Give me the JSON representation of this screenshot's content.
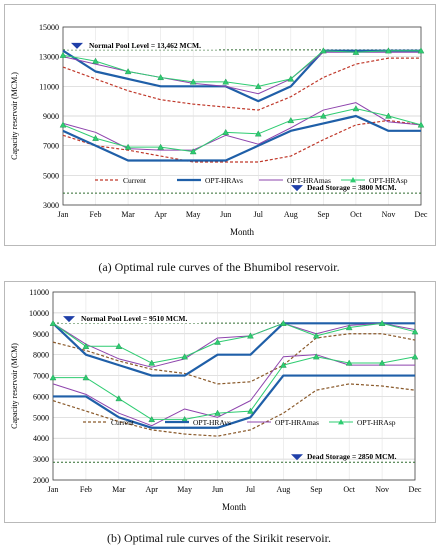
{
  "chart_data": [
    {
      "type": "line",
      "xlabel": "Month",
      "ylabel": "Capacity reservoir (MCM.)",
      "categories": [
        "Jan",
        "Feb",
        "Mar",
        "Apr",
        "May",
        "Jun",
        "Jul",
        "Aug",
        "Sep",
        "Oct",
        "Nov",
        "Dec"
      ],
      "yticks": [
        3000,
        5000,
        7000,
        9000,
        11000,
        13000,
        15000
      ],
      "ylim": [
        3000,
        15000
      ],
      "grid": true,
      "normal_pool": {
        "label": "Normal Pool Level = 13,462  MCM.",
        "value": 13462
      },
      "dead_storage": {
        "label": "Dead Storage = 3800 MCM.",
        "value": 3800
      },
      "legend": [
        {
          "name": "Current",
          "color": "#c0392b",
          "dash": "3,2",
          "marker": "none",
          "width": 1.2
        },
        {
          "name": "OPT-HRAvs",
          "color": "#1f5fa8",
          "dash": "",
          "marker": "none",
          "width": 2.2
        },
        {
          "name": "OPT-HRAmas",
          "color": "#8e44ad",
          "dash": "",
          "marker": "none",
          "width": 1
        },
        {
          "name": "OPT-HRAsp",
          "color": "#2ecc71",
          "dash": "",
          "marker": "triangle",
          "width": 1
        }
      ],
      "series": [
        {
          "name": "Current",
          "values": [
            12300,
            11500,
            10700,
            10100,
            9800,
            9600,
            9400,
            10300,
            11600,
            12500,
            12900,
            12900
          ],
          "color": "#c0392b",
          "dash": "3,2",
          "marker": "none",
          "width": 1.2
        },
        {
          "name": "Current",
          "values": [
            7700,
            7000,
            6700,
            6300,
            5900,
            5900,
            5900,
            6300,
            7400,
            8400,
            8700,
            8400
          ],
          "color": "#c0392b",
          "dash": "3,2",
          "marker": "none",
          "width": 1.2
        },
        {
          "name": "OPT-HRAvs",
          "values": [
            13400,
            12000,
            11500,
            11000,
            11000,
            11000,
            10000,
            11000,
            13400,
            13400,
            13400,
            13400
          ],
          "color": "#1f5fa8",
          "dash": "",
          "marker": "none",
          "width": 2.2
        },
        {
          "name": "OPT-HRAvs",
          "values": [
            8000,
            7000,
            6000,
            6000,
            6000,
            6000,
            7000,
            8000,
            8500,
            9000,
            8000,
            8000
          ],
          "color": "#1f5fa8",
          "dash": "",
          "marker": "none",
          "width": 2.2
        },
        {
          "name": "OPT-HRAmas",
          "values": [
            13000,
            12500,
            12000,
            11600,
            11200,
            11000,
            10500,
            11500,
            13300,
            13300,
            13300,
            13300
          ],
          "color": "#8e44ad",
          "dash": "",
          "marker": "none",
          "width": 1
        },
        {
          "name": "OPT-HRAmas",
          "values": [
            8500,
            7900,
            6800,
            6700,
            6700,
            7700,
            7100,
            8200,
            9400,
            9900,
            8600,
            8400
          ],
          "color": "#8e44ad",
          "dash": "",
          "marker": "none",
          "width": 1
        },
        {
          "name": "OPT-HRAsp",
          "values": [
            13100,
            12700,
            12000,
            11600,
            11300,
            11300,
            11000,
            11500,
            13400,
            13300,
            13400,
            13400
          ],
          "color": "#2ecc71",
          "dash": "",
          "marker": "triangle",
          "width": 1
        },
        {
          "name": "OPT-HRAsp",
          "values": [
            8400,
            7500,
            6900,
            6900,
            6600,
            7900,
            7800,
            8700,
            9000,
            9500,
            9000,
            8400
          ],
          "color": "#2ecc71",
          "dash": "",
          "marker": "triangle",
          "width": 1
        }
      ]
    },
    {
      "type": "line",
      "xlabel": "Month",
      "ylabel": "Capacity reservoir (MCM)",
      "categories": [
        "Jan",
        "Feb",
        "Mar",
        "Apr",
        "May",
        "Jun",
        "Jul",
        "Aug",
        "Sep",
        "Oct",
        "Nov",
        "Dec"
      ],
      "yticks": [
        2000,
        3000,
        4000,
        5000,
        6000,
        7000,
        8000,
        9000,
        10000,
        11000
      ],
      "ylim": [
        2000,
        11000
      ],
      "grid": true,
      "normal_pool": {
        "label": "Normal Pool Level = 9510 MCM.",
        "value": 9510
      },
      "dead_storage": {
        "label": "Dead Storage = 2850 MCM.",
        "value": 2850
      },
      "legend": [
        {
          "name": "Current",
          "color": "#8a5a2b",
          "dash": "3,2",
          "marker": "none",
          "width": 1.2
        },
        {
          "name": "OPT-HRAvs",
          "color": "#1f5fa8",
          "dash": "",
          "marker": "none",
          "width": 2.2
        },
        {
          "name": "OPT-HRAmas",
          "color": "#8e44ad",
          "dash": "",
          "marker": "none",
          "width": 1
        },
        {
          "name": "OPT-HRAsp",
          "color": "#2ecc71",
          "dash": "",
          "marker": "triangle",
          "width": 1
        }
      ],
      "series": [
        {
          "name": "Current",
          "values": [
            8600,
            8200,
            7700,
            7300,
            7100,
            6600,
            6700,
            7500,
            8800,
            9000,
            9000,
            8700
          ],
          "color": "#8a5a2b",
          "dash": "3,2",
          "marker": "none",
          "width": 1.2
        },
        {
          "name": "Current",
          "values": [
            5800,
            5300,
            4800,
            4400,
            4200,
            4100,
            4400,
            5200,
            6300,
            6600,
            6500,
            6300
          ],
          "color": "#8a5a2b",
          "dash": "3,2",
          "marker": "none",
          "width": 1.2
        },
        {
          "name": "OPT-HRAvs",
          "values": [
            9500,
            8000,
            7500,
            7000,
            7000,
            8000,
            8000,
            9500,
            9500,
            9500,
            9500,
            9500
          ],
          "color": "#1f5fa8",
          "dash": "",
          "marker": "none",
          "width": 2.2
        },
        {
          "name": "OPT-HRAvs",
          "values": [
            6000,
            6000,
            5000,
            4500,
            4500,
            4500,
            5000,
            7000,
            7000,
            7000,
            7000,
            7000
          ],
          "color": "#1f5fa8",
          "dash": "",
          "marker": "none",
          "width": 2.2
        },
        {
          "name": "OPT-HRAmas",
          "values": [
            9500,
            8500,
            7800,
            7400,
            7800,
            8800,
            8900,
            9500,
            9000,
            9400,
            9500,
            9200
          ],
          "color": "#8e44ad",
          "dash": "",
          "marker": "none",
          "width": 1
        },
        {
          "name": "OPT-HRAmas",
          "values": [
            6600,
            6100,
            5200,
            4600,
            5400,
            5000,
            5800,
            7900,
            8000,
            7500,
            7500,
            7500
          ],
          "color": "#8e44ad",
          "dash": "",
          "marker": "none",
          "width": 1
        },
        {
          "name": "OPT-HRAsp",
          "values": [
            9500,
            8400,
            8400,
            7600,
            7900,
            8600,
            8900,
            9500,
            8900,
            9300,
            9500,
            9100
          ],
          "color": "#2ecc71",
          "dash": "",
          "marker": "triangle",
          "width": 1
        },
        {
          "name": "OPT-HRAsp",
          "values": [
            6900,
            6900,
            5900,
            4900,
            4900,
            5200,
            5300,
            7500,
            7900,
            7600,
            7600,
            7900
          ],
          "color": "#2ecc71",
          "dash": "",
          "marker": "triangle",
          "width": 1
        }
      ]
    }
  ],
  "captions": [
    "(a) Optimal rule curves of the Bhumibol reservoir.",
    "(b) Optimal rule curves of the Sirikit reservoir."
  ]
}
